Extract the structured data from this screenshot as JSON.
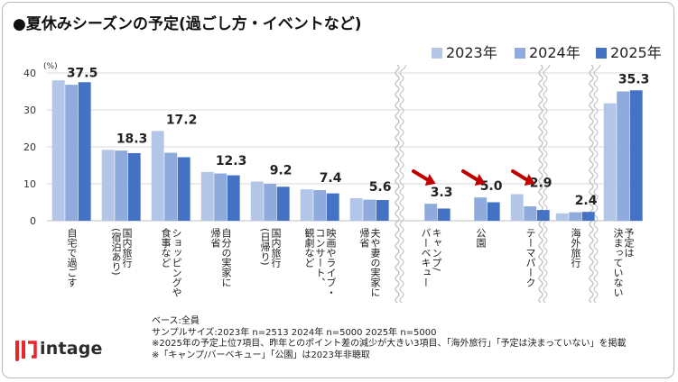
{
  "title": "●夏休みシーズンの予定(過ごし方・イベントなど)",
  "unit_label": "(%)",
  "colors": {
    "s2023": "#b4c6e7",
    "s2024": "#8faadc",
    "s2025": "#4472c4",
    "arrow": "#c00000",
    "grid": "#d9d9d9",
    "sep": "#bfbfbf"
  },
  "chart_data": {
    "type": "bar",
    "ylim": [
      0,
      40
    ],
    "yticks": [
      "0",
      "10",
      "20",
      "30",
      "40"
    ],
    "categories": [
      [
        "自宅で過ごす"
      ],
      [
        "国内旅行",
        "(宿泊あり)"
      ],
      [
        "ショッピングや",
        "食事など"
      ],
      [
        "自分の実家に",
        "帰省"
      ],
      [
        "国内旅行",
        "(日帰り)"
      ],
      [
        "映画やライブ・",
        "コンサート、",
        "観劇など"
      ],
      [
        "夫や妻の実家に",
        "帰省"
      ],
      [
        "キャンプ/",
        "バーベキュー"
      ],
      [
        "公園"
      ],
      [
        "テーマパーク"
      ],
      [
        "海外旅行"
      ],
      [
        "予定は",
        "決まっていない"
      ]
    ],
    "series": [
      {
        "name": "2023年",
        "values": [
          38.0,
          19.2,
          24.3,
          13.2,
          10.6,
          8.5,
          6.1,
          null,
          null,
          7.2,
          2.0,
          31.8
        ]
      },
      {
        "name": "2024年",
        "values": [
          36.8,
          19.0,
          18.4,
          12.8,
          10.0,
          8.3,
          5.7,
          4.6,
          6.3,
          3.9,
          2.3,
          35.0
        ]
      },
      {
        "name": "2025年",
        "values": [
          37.5,
          18.3,
          17.2,
          12.3,
          9.2,
          7.4,
          5.6,
          3.3,
          5.0,
          2.9,
          2.4,
          35.3
        ]
      }
    ],
    "value_labels": [
      "37.5",
      "18.3",
      "17.2",
      "12.3",
      "9.2",
      "7.4",
      "5.6",
      "3.3",
      "5.0",
      "2.9",
      "2.4",
      "35.3"
    ],
    "decrease_arrows_on": [
      7,
      8,
      9
    ],
    "grid": true,
    "legend": "top-right"
  },
  "footnotes": [
    "ベース:全員",
    "サンプルサイズ:2023年 n=2513 2024年 n=5000 2025年 n=5000",
    "※2025年の予定上位7項目、昨年とのポイント差の減少が大きい3項目、「海外旅行」「予定は決まっていない」を掲載",
    "※「キャンプ/バーベキュー」「公園」は2023年非聴取"
  ],
  "logo": {
    "text": "intage",
    "icon": "intage-logo-icon"
  }
}
